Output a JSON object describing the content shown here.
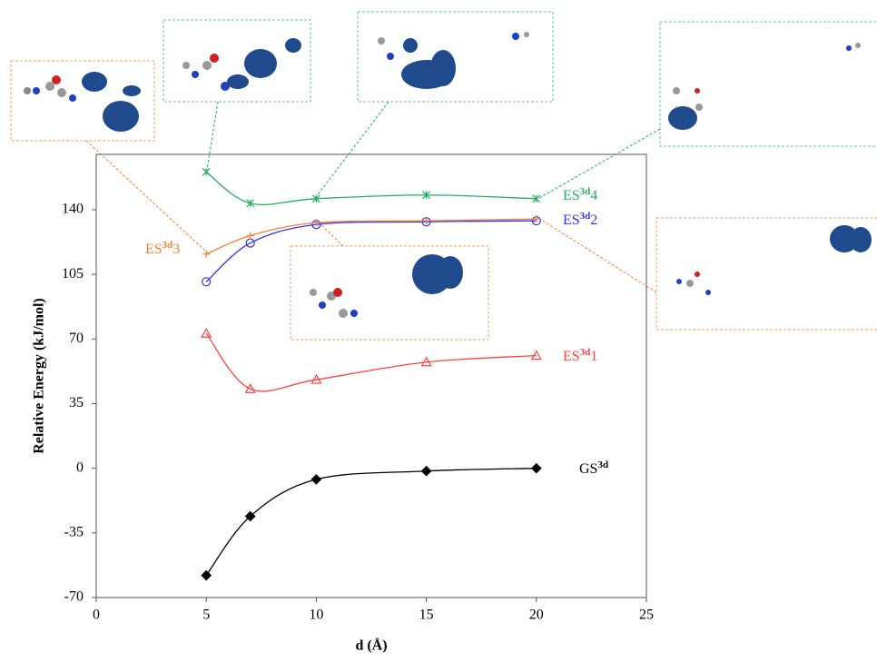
{
  "chart_data": {
    "type": "line",
    "x_label": "d (Å)",
    "y_label": "Relative Energy (kJ/mol)",
    "xlim": [
      0,
      25
    ],
    "xticks": [
      0,
      5,
      10,
      15,
      20,
      25
    ],
    "ylim": [
      -70,
      170
    ],
    "yticks": [
      -70,
      -35,
      0,
      35,
      70,
      105,
      140
    ],
    "x": [
      5,
      7,
      10,
      15,
      20
    ],
    "series": [
      {
        "name": "GS3d",
        "color": "#000000",
        "marker": "diamond",
        "values": [
          -58,
          -26,
          -6,
          -1.5,
          0
        ]
      },
      {
        "name": "ES3d1",
        "color": "#ff4040",
        "marker": "triangle",
        "values": [
          73,
          43,
          48,
          57.5,
          61
        ]
      },
      {
        "name": "ES3d2",
        "color": "#3030ff",
        "marker": "circle",
        "values": [
          101,
          122,
          132,
          133.5,
          134
        ]
      },
      {
        "name": "ES3d3",
        "color": "#f08030",
        "marker": "plus",
        "values": [
          116,
          126,
          133,
          134,
          135
        ]
      },
      {
        "name": "ES3d4",
        "color": "#20b060",
        "marker": "star",
        "values": [
          160.5,
          143.5,
          146,
          148,
          146
        ]
      }
    ]
  }
}
